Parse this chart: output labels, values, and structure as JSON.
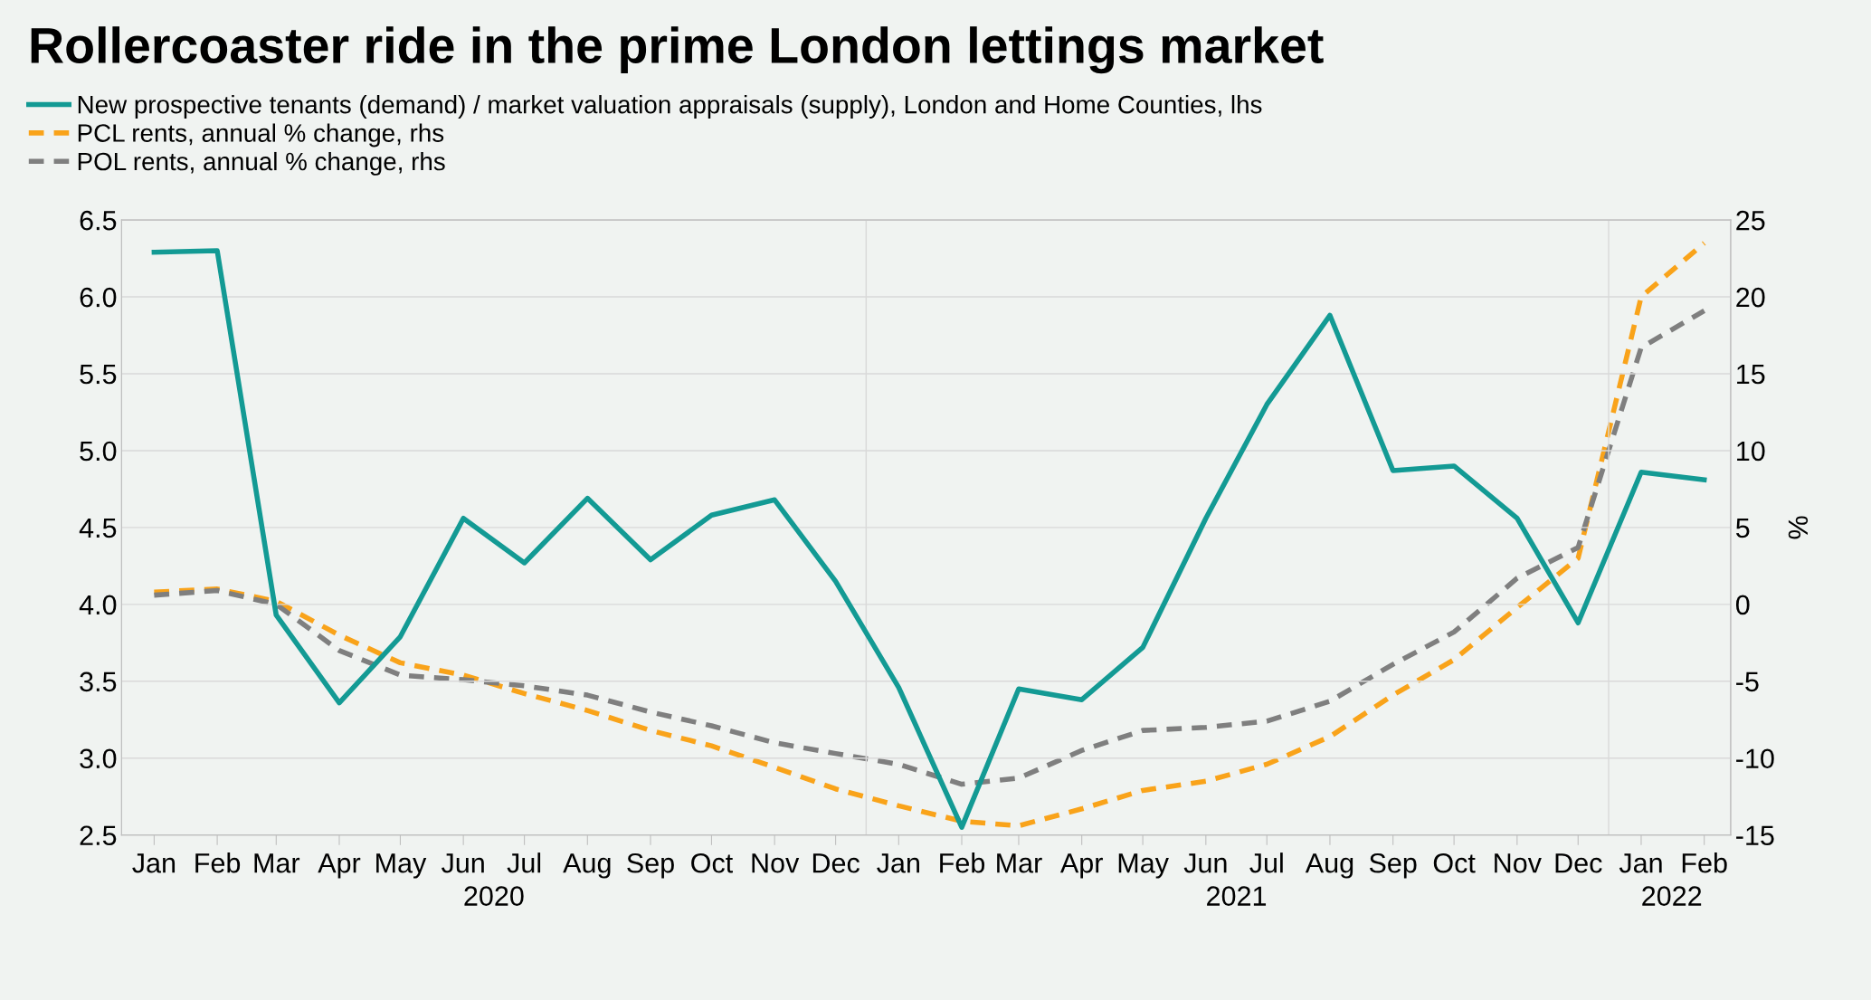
{
  "chart_data": {
    "type": "line",
    "title": "Rollercoaster ride in the prime London lettings market",
    "x": [
      "2020-01",
      "2020-02",
      "2020-03",
      "2020-04",
      "2020-05",
      "2020-06",
      "2020-07",
      "2020-08",
      "2020-09",
      "2020-10",
      "2020-11",
      "2020-12",
      "2021-01",
      "2021-02",
      "2021-03",
      "2021-04",
      "2021-05",
      "2021-06",
      "2021-07",
      "2021-08",
      "2021-09",
      "2021-10",
      "2021-11",
      "2021-12",
      "2022-01",
      "2022-02"
    ],
    "series": [
      {
        "name": "New prospective tenants (demand) / market valuation appraisals (supply), London and Home Counties, lhs",
        "color": "#139a94",
        "line_style": "solid",
        "values": [
          6.29,
          6.3,
          3.93,
          3.36,
          3.79,
          4.56,
          4.27,
          4.69,
          4.29,
          4.58,
          4.68,
          4.15,
          3.46,
          2.55,
          3.45,
          3.38,
          3.72,
          4.56,
          5.3,
          5.88,
          4.87,
          4.9,
          4.56,
          3.88,
          4.86,
          4.81
        ]
      },
      {
        "name": "PCL rents, annual % change, rhs",
        "color": "#f9a31a",
        "line_style": "dashed",
        "axis": "y2",
        "values": [
          0.8,
          1.0,
          0.2,
          -2.0,
          -3.8,
          -4.6,
          -5.8,
          -6.9,
          -8.2,
          -9.2,
          -10.6,
          -12.0,
          -13.1,
          -14.1,
          -14.4,
          -13.3,
          -12.1,
          -11.5,
          -10.4,
          -8.6,
          -5.9,
          -3.6,
          -0.2,
          3.0,
          20.0,
          23.5
        ]
      },
      {
        "name": "POL rents, annual % change, rhs",
        "color": "#7f7f7f",
        "line_style": "dashed",
        "axis": "y2",
        "values": [
          0.6,
          0.9,
          0.0,
          -3.0,
          -4.6,
          -4.9,
          -5.3,
          -5.9,
          -7.0,
          -7.9,
          -9.0,
          -9.7,
          -10.4,
          -11.7,
          -11.3,
          -9.5,
          -8.2,
          -8.0,
          -7.6,
          -6.3,
          -3.9,
          -1.8,
          1.7,
          3.7,
          16.7,
          19.1
        ]
      }
    ],
    "xlim": [
      "2019-12-16",
      "2022-02-14"
    ],
    "xticks": [
      {
        "value": "2020-01",
        "label": "Jan"
      },
      {
        "value": "2020-02",
        "label": "Feb"
      },
      {
        "value": "2020-03",
        "label": "Mar"
      },
      {
        "value": "2020-04",
        "label": "Apr"
      },
      {
        "value": "2020-05",
        "label": "May"
      },
      {
        "value": "2020-06",
        "label": "Jun"
      },
      {
        "value": "2020-07",
        "label": "Jul"
      },
      {
        "value": "2020-08",
        "label": "Aug"
      },
      {
        "value": "2020-09",
        "label": "Sep"
      },
      {
        "value": "2020-10",
        "label": "Oct"
      },
      {
        "value": "2020-11",
        "label": "Nov"
      },
      {
        "value": "2020-12",
        "label": "Dec"
      },
      {
        "value": "2021-01",
        "label": "Jan"
      },
      {
        "value": "2021-02",
        "label": "Feb"
      },
      {
        "value": "2021-03",
        "label": "Mar"
      },
      {
        "value": "2021-04",
        "label": "Apr"
      },
      {
        "value": "2021-05",
        "label": "May"
      },
      {
        "value": "2021-06",
        "label": "Jun"
      },
      {
        "value": "2021-07",
        "label": "Jul"
      },
      {
        "value": "2021-08",
        "label": "Aug"
      },
      {
        "value": "2021-09",
        "label": "Sep"
      },
      {
        "value": "2021-10",
        "label": "Oct"
      },
      {
        "value": "2021-11",
        "label": "Nov"
      },
      {
        "value": "2021-12",
        "label": "Dec"
      },
      {
        "value": "2022-01",
        "label": "Jan"
      },
      {
        "value": "2022-02",
        "label": "Feb"
      }
    ],
    "x2lim": [
      "2019-12-16",
      "2022-02-14"
    ],
    "x2ticks": [
      {
        "value": "2020-06-16",
        "label": "2020"
      },
      {
        "value": "2021-06-16",
        "label": "2021"
      },
      {
        "value": "2022-01-16",
        "label": "2022"
      }
    ],
    "ylim": [
      2.5,
      6.5
    ],
    "yticks": [
      {
        "value": 2.5,
        "label": "2.5"
      },
      {
        "value": 3.0,
        "label": "3.0"
      },
      {
        "value": 3.5,
        "label": "3.5"
      },
      {
        "value": 4.0,
        "label": "4.0"
      },
      {
        "value": 4.5,
        "label": "4.5"
      },
      {
        "value": 5.0,
        "label": "5.0"
      },
      {
        "value": 5.5,
        "label": "5.5"
      },
      {
        "value": 6.0,
        "label": "6.0"
      },
      {
        "value": 6.5,
        "label": "6.5"
      }
    ],
    "y2lim": [
      -15,
      25
    ],
    "y2ticks": [
      -15,
      -10,
      -5,
      0,
      5,
      10,
      15,
      20,
      25
    ],
    "y2label": "%",
    "ref_lines": [
      {
        "axis": "x",
        "value": "2020-12-16",
        "color": "#d9d9d9"
      },
      {
        "axis": "x",
        "value": "2021-12-16",
        "color": "#d9d9d9"
      }
    ],
    "grid": "y",
    "legend": "top left"
  }
}
